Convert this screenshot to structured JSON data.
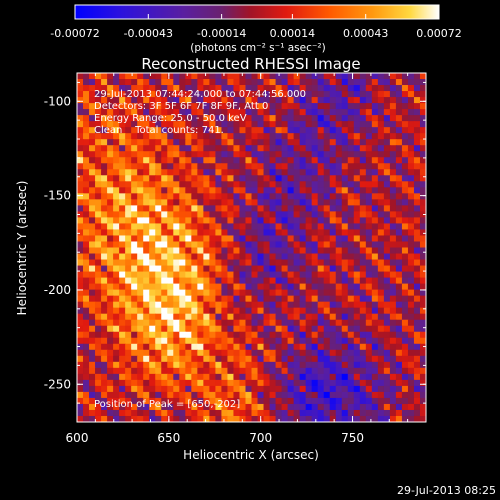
{
  "colorbar": {
    "tick_labels": [
      "-0.00072",
      "-0.00043",
      "-0.00014",
      "0.00014",
      "0.00043",
      "0.00072"
    ],
    "tick_values": [
      -0.00072,
      -0.00043,
      -0.00014,
      0.00014,
      0.00043,
      0.00072
    ],
    "units_label": "(photons cm⁻² s⁻¹ asec⁻²)",
    "range": [
      -0.00072,
      0.00072
    ]
  },
  "chart_data": {
    "type": "heatmap",
    "title": "Reconstructed RHESSI Image",
    "xlabel": "Heliocentric X (arcsec)",
    "ylabel": "Heliocentric Y (arcsec)",
    "xlim": [
      600,
      790
    ],
    "ylim": [
      -270,
      -85
    ],
    "x_ticks": [
      600,
      650,
      700,
      750
    ],
    "y_ticks": [
      -250,
      -200,
      -150,
      -100
    ],
    "x_tick_labels": [
      "600",
      "650",
      "700",
      "750"
    ],
    "y_tick_labels": [
      "-250",
      "-200",
      "-150",
      "-100"
    ],
    "annotations": [
      "29-Jul-2013 07:44:24.000 to 07:44:56.000",
      "Detectors: 3F 5F 6F 7F 8F 9F, Att 0",
      "Energy Range: 25.0 - 50.0 keV",
      "Clean    Total counts: 741.",
      "Position of Peak = [650,-202]"
    ],
    "peak": [
      650,
      -202
    ],
    "colormap": "blue-purple-red-orange-yellow-white",
    "footer": "29-Jul-2013 08:25"
  }
}
